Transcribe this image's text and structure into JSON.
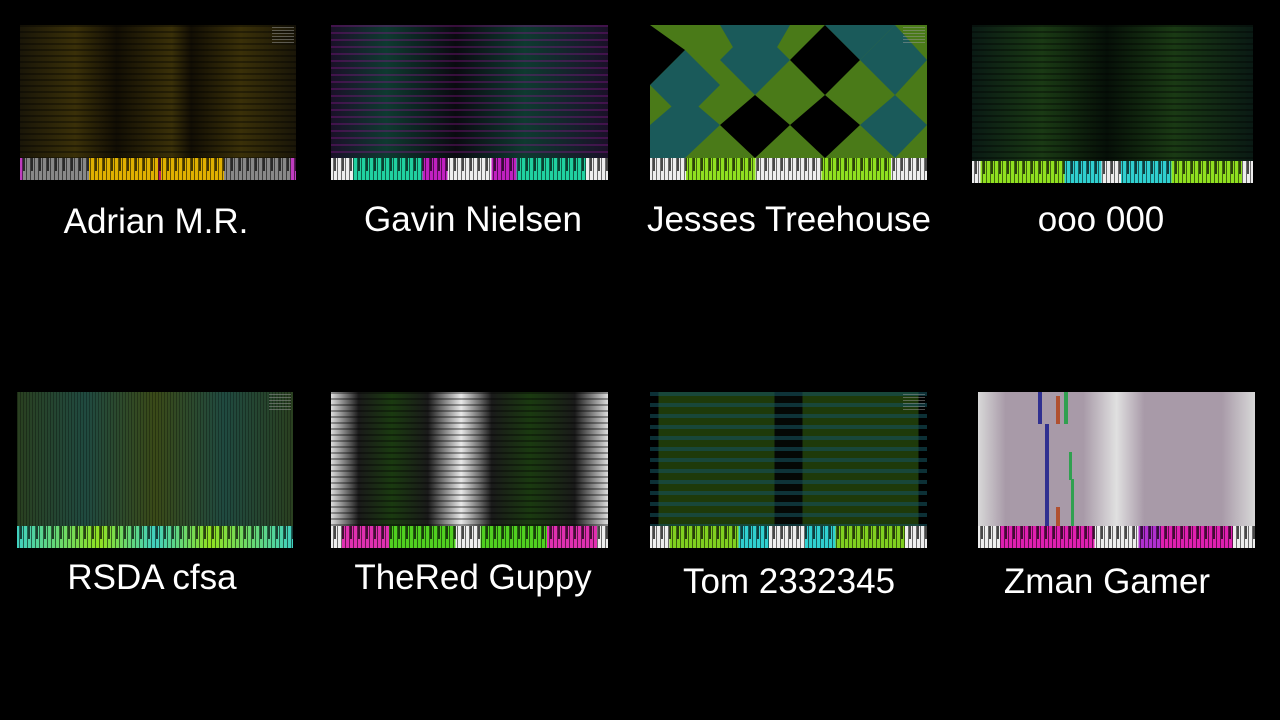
{
  "entries": [
    {
      "name": "Adrian M.R.",
      "colors": [
        "#d4a300",
        "#808080",
        "#c03cc0"
      ]
    },
    {
      "name": "Gavin Nielsen",
      "colors": [
        "#20d0a0",
        "#c020c0"
      ]
    },
    {
      "name": "Jesses Treehouse",
      "colors": [
        "#5a8a20",
        "#1a6a6a",
        "#90e020"
      ]
    },
    {
      "name": "ooo 000",
      "colors": [
        "#90e020",
        "#30d0d0"
      ]
    },
    {
      "name": "RSDA cfsa",
      "colors": [
        "#40d0c0",
        "#90e020"
      ]
    },
    {
      "name": "TheRed Guppy",
      "colors": [
        "#e030b0",
        "#50d020"
      ]
    },
    {
      "name": "Tom 2332345",
      "colors": [
        "#80d020",
        "#30d0d0"
      ]
    },
    {
      "name": "Zman Gamer",
      "colors": [
        "#e020b0",
        "#b030d0"
      ]
    }
  ]
}
